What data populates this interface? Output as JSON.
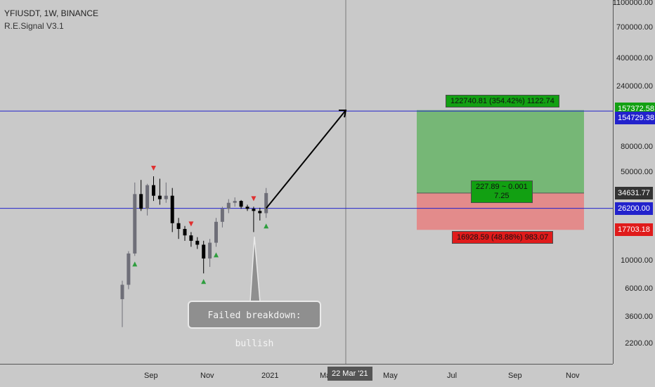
{
  "legend": {
    "symbol_line": "YFIUSDT, 1W, BINANCE",
    "indicator": "R.E.Signal V3.1"
  },
  "price_axis": {
    "ticks": [
      "1100000.00",
      "700000.00",
      "400000.00",
      "240000.00",
      "80000.00",
      "50000.00",
      "10000.00",
      "6000.00",
      "3600.00",
      "2200.00"
    ],
    "tags": {
      "target_price": "157372.58",
      "target_line": "154729.38",
      "last_price": "34631.77",
      "entry_line": "26200.00",
      "stop_price": "17703.18"
    }
  },
  "time_axis": {
    "labels": [
      "Sep",
      "Nov",
      "2021",
      "Mar",
      "May",
      "Jul",
      "Sep",
      "Nov"
    ],
    "crosshair_label": "22 Mar '21"
  },
  "position_tool": {
    "target_label": "122740.81 (354.42%) 1122.74",
    "center_label_line1": "227.89 ~ 0.001",
    "center_label_line2": "7.25",
    "stop_label": "16928.59 (48.88%) 983.07"
  },
  "annotation": {
    "callout_text": "Failed breakdown: bullish"
  },
  "colors": {
    "background": "#c9c9c9",
    "profit_zone": "#76b776",
    "loss_zone": "#e38b8b",
    "profit_tag": "#12a012",
    "loss_tag": "#e01b1b",
    "horizontal_line": "#2222cc",
    "candle_up": "#6e6e78",
    "candle_down": "#000000",
    "signal_buy": "#2e9e3e",
    "signal_sell": "#e03030"
  },
  "chart_data": {
    "type": "candlestick",
    "symbol": "YFIUSDT",
    "interval": "1W",
    "scale": "log",
    "candles": [
      {
        "o": 5000,
        "h": 7000,
        "l": 3000,
        "c": 6500
      },
      {
        "o": 6500,
        "h": 12000,
        "l": 6000,
        "c": 11500
      },
      {
        "o": 11500,
        "h": 42000,
        "l": 11000,
        "c": 34000
      },
      {
        "o": 34000,
        "h": 44000,
        "l": 25000,
        "c": 26000
      },
      {
        "o": 26000,
        "h": 41000,
        "l": 23000,
        "c": 40000
      },
      {
        "o": 40000,
        "h": 47000,
        "l": 30000,
        "c": 33000
      },
      {
        "o": 33000,
        "h": 45000,
        "l": 28000,
        "c": 31000
      },
      {
        "o": 31000,
        "h": 42000,
        "l": 29000,
        "c": 33000
      },
      {
        "o": 33000,
        "h": 38000,
        "l": 17000,
        "c": 20000
      },
      {
        "o": 20000,
        "h": 22000,
        "l": 15000,
        "c": 18000
      },
      {
        "o": 18000,
        "h": 19000,
        "l": 14500,
        "c": 16000
      },
      {
        "o": 16000,
        "h": 17000,
        "l": 13000,
        "c": 14500
      },
      {
        "o": 14500,
        "h": 15500,
        "l": 12500,
        "c": 13500
      },
      {
        "o": 13500,
        "h": 14500,
        "l": 8000,
        "c": 10500
      },
      {
        "o": 10500,
        "h": 15000,
        "l": 9000,
        "c": 14000
      },
      {
        "o": 14000,
        "h": 22000,
        "l": 13000,
        "c": 20500
      },
      {
        "o": 20500,
        "h": 27000,
        "l": 18500,
        "c": 26000
      },
      {
        "o": 26000,
        "h": 31000,
        "l": 24000,
        "c": 29000
      },
      {
        "o": 29000,
        "h": 32000,
        "l": 27000,
        "c": 30000
      },
      {
        "o": 30000,
        "h": 30500,
        "l": 26000,
        "c": 27000
      },
      {
        "o": 27000,
        "h": 28000,
        "l": 25000,
        "c": 26000
      },
      {
        "o": 26000,
        "h": 27000,
        "l": 17000,
        "c": 25000
      },
      {
        "o": 25000,
        "h": 26500,
        "l": 21000,
        "c": 24000
      },
      {
        "o": 24000,
        "h": 38000,
        "l": 22000,
        "c": 34631.77
      }
    ],
    "buy_signals": [
      2,
      13,
      15,
      23
    ],
    "sell_signals": [
      5,
      11,
      21
    ],
    "horizontal_lines": [
      154729.38,
      26200
    ],
    "long_position": {
      "entry": 34631.77,
      "target": 157372.58,
      "stop": 17703.18
    },
    "ylim": [
      1800,
      1100000
    ]
  }
}
